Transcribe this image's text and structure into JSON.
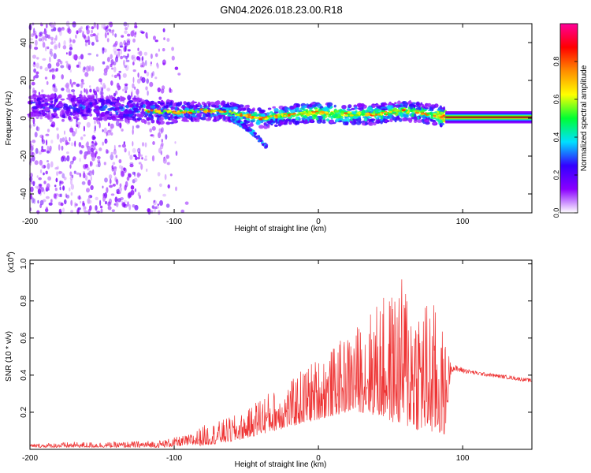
{
  "title": "GN04.2026.018.23.00.R18",
  "chart_data": [
    {
      "type": "heatmap",
      "title": "GN04.2026.018.23.00.R18",
      "xlabel": "Height of straight line (km)",
      "ylabel": "Frequency (Hz)",
      "xlim": [
        -200,
        148
      ],
      "ylim": [
        -50,
        50
      ],
      "xticks": [
        -200,
        -100,
        0,
        100
      ],
      "yticks": [
        -40,
        -20,
        0,
        20,
        40
      ],
      "colorbar": {
        "label": "Normalized spectral amplitude",
        "range": [
          0,
          1
        ],
        "ticks": [
          "0.0",
          "0.2",
          "0.4",
          "0.6",
          "0.8"
        ],
        "tick_values": [
          0.0,
          0.2,
          0.4,
          0.6,
          0.8
        ],
        "colors": [
          "#ffffff",
          "#8a00ff",
          "#3300ff",
          "#00e0ff",
          "#00ff33",
          "#ffff00",
          "#ff8c00",
          "#ff0000",
          "#ff0099"
        ]
      },
      "ridge": {
        "x": [
          -200,
          -180,
          -160,
          -140,
          -120,
          -100,
          -80,
          -60,
          -40,
          -20,
          0,
          20,
          40,
          60,
          80,
          88,
          100,
          120,
          148
        ],
        "freq": [
          7,
          6,
          6,
          5,
          4,
          3,
          4,
          3,
          0,
          2,
          3,
          2,
          2,
          4,
          2,
          0.5,
          0.5,
          0.5,
          0.5
        ],
        "intensity": [
          0.2,
          0.2,
          0.22,
          0.25,
          0.3,
          0.35,
          0.35,
          0.4,
          0.45,
          0.5,
          0.65,
          0.55,
          0.5,
          0.55,
          0.5,
          0.9,
          0.9,
          0.85,
          0.8
        ]
      },
      "branch": {
        "x": [
          -60,
          -52,
          -45,
          -40,
          -36
        ],
        "freq": [
          0,
          -4,
          -8,
          -12,
          -15
        ]
      },
      "noise_region": {
        "x": [
          -200,
          -90
        ],
        "freq": [
          -50,
          50
        ]
      }
    },
    {
      "type": "line",
      "xlabel": "Height of straight line (km)",
      "ylabel": "SNR (10 * v/v)",
      "scale_label": "(x10",
      "scale_exponent": "4",
      "scale_suffix": ")",
      "xlim": [
        -200,
        148
      ],
      "ylim": [
        0,
        1.02
      ],
      "xticks": [
        -200,
        -100,
        0,
        100
      ],
      "yticks": [
        0.2,
        0.4,
        0.6,
        0.8,
        1.0
      ],
      "ytick_labels": [
        "0.2",
        "0.4",
        "0.6",
        "0.8",
        "1.0"
      ],
      "color": "#ee3333",
      "envelope": {
        "x": [
          -200,
          -170,
          -140,
          -110,
          -90,
          -80,
          -70,
          -60,
          -50,
          -40,
          -30,
          -20,
          -10,
          0,
          10,
          20,
          30,
          40,
          50,
          60,
          70,
          80,
          88,
          92,
          110,
          130,
          148
        ],
        "low": [
          0.01,
          0.01,
          0.01,
          0.01,
          0.02,
          0.02,
          0.03,
          0.04,
          0.06,
          0.08,
          0.1,
          0.12,
          0.14,
          0.16,
          0.18,
          0.2,
          0.2,
          0.18,
          0.15,
          0.12,
          0.1,
          0.08,
          0.08,
          0.42,
          0.4,
          0.38,
          0.36
        ],
        "high": [
          0.03,
          0.04,
          0.04,
          0.05,
          0.08,
          0.13,
          0.15,
          0.18,
          0.2,
          0.3,
          0.32,
          0.36,
          0.45,
          0.5,
          0.55,
          0.62,
          0.7,
          0.8,
          0.85,
          0.95,
          0.85,
          0.8,
          0.6,
          0.46,
          0.42,
          0.4,
          0.38
        ]
      }
    }
  ]
}
